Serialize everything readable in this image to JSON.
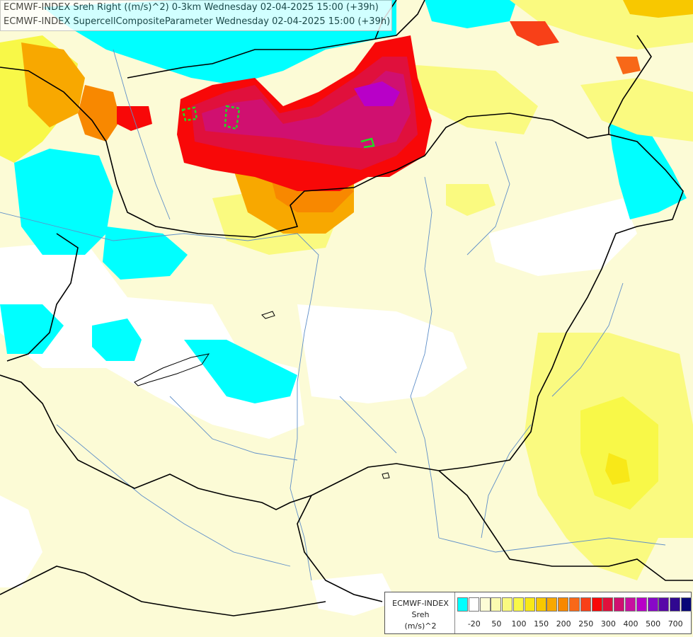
{
  "header": {
    "line1": "ECMWF-INDEX Sreh Right ((m/s)^2) 0-3km Wednesday 02-04-2025 15:00 (+39h)",
    "line2": "ECMWF-INDEX SupercellCompositeParameter Wednesday 02-04-2025 15:00 (+39h)"
  },
  "legend": {
    "source": "ECMWF-INDEX",
    "param": "Sreh",
    "unit": "(m/s)^2",
    "swatch_colors": [
      "#00ffff",
      "#ffffff",
      "#fdfdd6",
      "#fbfbb0",
      "#fafa80",
      "#f8f848",
      "#f8e818",
      "#f8c800",
      "#f8a800",
      "#f88800",
      "#f86818",
      "#f84018",
      "#f80808",
      "#e0103c",
      "#d01070",
      "#c810a0",
      "#b800c8",
      "#8808c8",
      "#5808a8",
      "#300890",
      "#080878"
    ],
    "ticks": [
      "-20",
      "50",
      "100",
      "150",
      "200",
      "250",
      "300",
      "400",
      "500",
      "700"
    ]
  }
}
